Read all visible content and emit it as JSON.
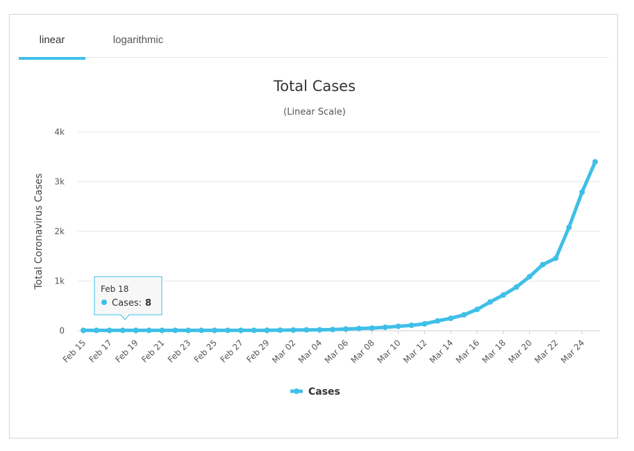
{
  "tabs": [
    {
      "label": "linear",
      "active": true
    },
    {
      "label": "logarithmic",
      "active": false
    }
  ],
  "accent_color": "#3fbfe7",
  "chart_data": {
    "type": "line",
    "title": "Total Cases",
    "subtitle": "(Linear Scale)",
    "ylabel": "Total Coronavirus Cases",
    "xlabel": "",
    "ylim": [
      0,
      4000
    ],
    "y_ticks": [
      "0",
      "1k",
      "2k",
      "3k",
      "4k"
    ],
    "y_tick_values": [
      0,
      1000,
      2000,
      3000,
      4000
    ],
    "grid": true,
    "legend": "bottom-center",
    "x": [
      "Feb 15",
      "Feb 16",
      "Feb 17",
      "Feb 18",
      "Feb 19",
      "Feb 20",
      "Feb 21",
      "Feb 22",
      "Feb 23",
      "Feb 24",
      "Feb 25",
      "Feb 26",
      "Feb 27",
      "Feb 28",
      "Feb 29",
      "Mar 01",
      "Mar 02",
      "Mar 03",
      "Mar 04",
      "Mar 05",
      "Mar 06",
      "Mar 07",
      "Mar 08",
      "Mar 09",
      "Mar 10",
      "Mar 11",
      "Mar 12",
      "Mar 13",
      "Mar 14",
      "Mar 15",
      "Mar 16",
      "Mar 17",
      "Mar 18",
      "Mar 19",
      "Mar 20",
      "Mar 21",
      "Mar 22",
      "Mar 23",
      "Mar 24",
      "Mar 25"
    ],
    "x_tick_labels": [
      "Feb 15",
      "Feb 17",
      "Feb 19",
      "Feb 21",
      "Feb 23",
      "Feb 25",
      "Feb 27",
      "Feb 29",
      "Mar 02",
      "Mar 04",
      "Mar 06",
      "Mar 08",
      "Mar 10",
      "Mar 12",
      "Mar 14",
      "Mar 16",
      "Mar 18",
      "Mar 20",
      "Mar 22",
      "Mar 24"
    ],
    "series": [
      {
        "name": "Cases",
        "color": "#3fbfe7",
        "values": [
          8,
          8,
          8,
          8,
          8,
          8,
          8,
          8,
          8,
          8,
          8,
          8,
          8,
          8,
          10,
          12,
          15,
          18,
          20,
          25,
          35,
          45,
          55,
          70,
          90,
          110,
          140,
          200,
          250,
          320,
          430,
          580,
          720,
          880,
          1090,
          1330,
          1460,
          2080,
          2790,
          3400
        ]
      }
    ],
    "tooltip": {
      "date": "Feb 18",
      "series": "Cases",
      "separator": ":",
      "value": "8"
    }
  }
}
